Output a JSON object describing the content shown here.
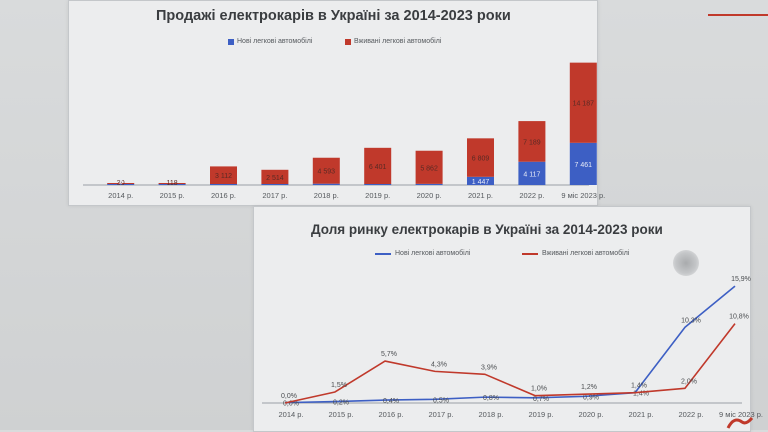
{
  "colors": {
    "new": "#3d5fc4",
    "used": "#c0392b",
    "text": "#3a3d40",
    "axis": "#9aa0a6"
  },
  "icons": {
    "accent": "red-accent-line",
    "logo": "brand-logo-icon"
  },
  "chart_data": [
    {
      "type": "bar",
      "stacked": true,
      "title": "Продажі електрокарів в Україні за 2014-2023 роки",
      "categories": [
        "2014 р.",
        "2015 р.",
        "2016 р.",
        "2017 р.",
        "2018 р.",
        "2019 р.",
        "2020 р.",
        "2021 р.",
        "2022 р.",
        "9 міс 2023 р."
      ],
      "series": [
        {
          "name": "Нові легкові автомобілі",
          "values": [
            3,
            10,
            13,
            100,
            230,
            170,
            200,
            1447,
            4117,
            7461
          ],
          "labels": [
            "3",
            "",
            "",
            "",
            "",
            "",
            "",
            "1 447",
            "4 117",
            "7 461"
          ]
        },
        {
          "name": "Вживані легкові автомобілі",
          "values": [
            30,
            118,
            3112,
            2514,
            4593,
            6401,
            5862,
            6809,
            7189,
            14187
          ],
          "labels": [
            "30",
            "118",
            "3 112",
            "2 514",
            "4 593",
            "6 401",
            "5 862",
            "6 809",
            "7 189",
            "14 187"
          ]
        }
      ],
      "ylim": [
        0,
        23000
      ],
      "legend": "top"
    },
    {
      "type": "line",
      "title": "Доля ринку електрокарів в Україні за 2014-2023 роки",
      "categories": [
        "2014 р.",
        "2015 р.",
        "2016 р.",
        "2017 р.",
        "2018 р.",
        "2019 р.",
        "2020 р.",
        "2021 р.",
        "2022 р.",
        "9 міс 2023 р."
      ],
      "series": [
        {
          "name": "Нові легкові автомобілі",
          "values": [
            0.05,
            0.2,
            0.4,
            0.5,
            0.8,
            0.7,
            0.9,
            1.4,
            10.3,
            15.9
          ],
          "labels": [
            "0,0%",
            "0,2%",
            "0,4%",
            "0,5%",
            "0,8%",
            "0,7%",
            "0,9%",
            "1,4%",
            "10,3%",
            "15,9%"
          ]
        },
        {
          "name": "Вживані легкові автомобілі",
          "values": [
            0.0,
            1.5,
            5.7,
            4.3,
            3.9,
            1.0,
            1.2,
            1.4,
            2.0,
            10.8
          ],
          "labels": [
            "0,0%",
            "1,5%",
            "5,7%",
            "4,3%",
            "3,9%",
            "1,0%",
            "1,2%",
            "1,4%",
            "2,0%",
            "10,8%"
          ]
        }
      ],
      "ylim": [
        0,
        17
      ],
      "legend": "top"
    }
  ]
}
